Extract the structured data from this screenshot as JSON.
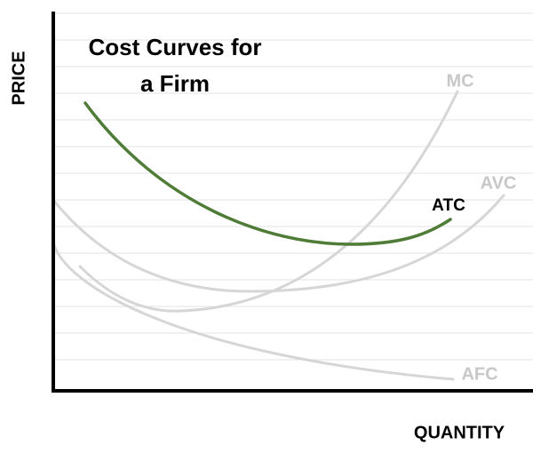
{
  "title_lines": [
    "Cost Curves for",
    "a Firm"
  ],
  "y_axis_label": "PRICE",
  "x_axis_label": "QUANTITY",
  "curves": [
    {
      "label": "MC"
    },
    {
      "label": "AVC"
    },
    {
      "label": "ATC"
    },
    {
      "label": "AFC"
    }
  ]
}
